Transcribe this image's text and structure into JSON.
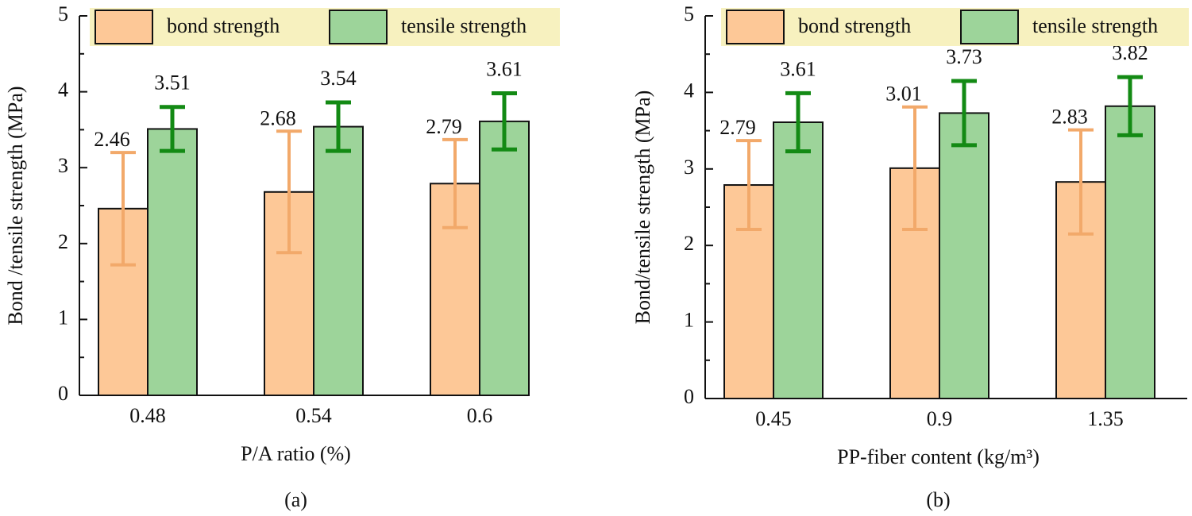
{
  "chart_data": [
    {
      "type": "bar",
      "ylabel": "Bond /tensile strength (MPa)",
      "xlabel": "P/A ratio (%)",
      "caption": "(a)",
      "categories": [
        "0.48",
        "0.54",
        "0.6"
      ],
      "series": [
        {
          "name": "bond strength",
          "color": "#fdc897",
          "error_color": "#f2a96a",
          "values": [
            2.46,
            2.68,
            2.79
          ],
          "errors": [
            0.74,
            0.8,
            0.58
          ]
        },
        {
          "name": "tensile strength",
          "color": "#9dd49a",
          "error_color": "#138a14",
          "values": [
            3.51,
            3.54,
            3.61
          ],
          "errors": [
            0.29,
            0.32,
            0.37
          ]
        }
      ],
      "ylim": [
        0,
        5
      ],
      "yticks": [
        0,
        1,
        2,
        3,
        4,
        5
      ],
      "legend_color": "#f7f1bf"
    },
    {
      "type": "bar",
      "ylabel": "Bond/tensile strength (MPa)",
      "xlabel": "PP-fiber content (kg/m³)",
      "caption": "(b)",
      "categories": [
        "0.45",
        "0.9",
        "1.35"
      ],
      "series": [
        {
          "name": "bond strength",
          "color": "#fdc897",
          "error_color": "#f2a96a",
          "values": [
            2.79,
            3.01,
            2.83
          ],
          "errors": [
            0.58,
            0.8,
            0.68
          ]
        },
        {
          "name": "tensile strength",
          "color": "#9dd49a",
          "error_color": "#138a14",
          "values": [
            3.61,
            3.73,
            3.82
          ],
          "errors": [
            0.38,
            0.42,
            0.38
          ]
        }
      ],
      "ylim": [
        0,
        5
      ],
      "yticks": [
        0,
        1,
        2,
        3,
        4,
        5
      ],
      "legend_color": "#f7f1bf"
    }
  ]
}
